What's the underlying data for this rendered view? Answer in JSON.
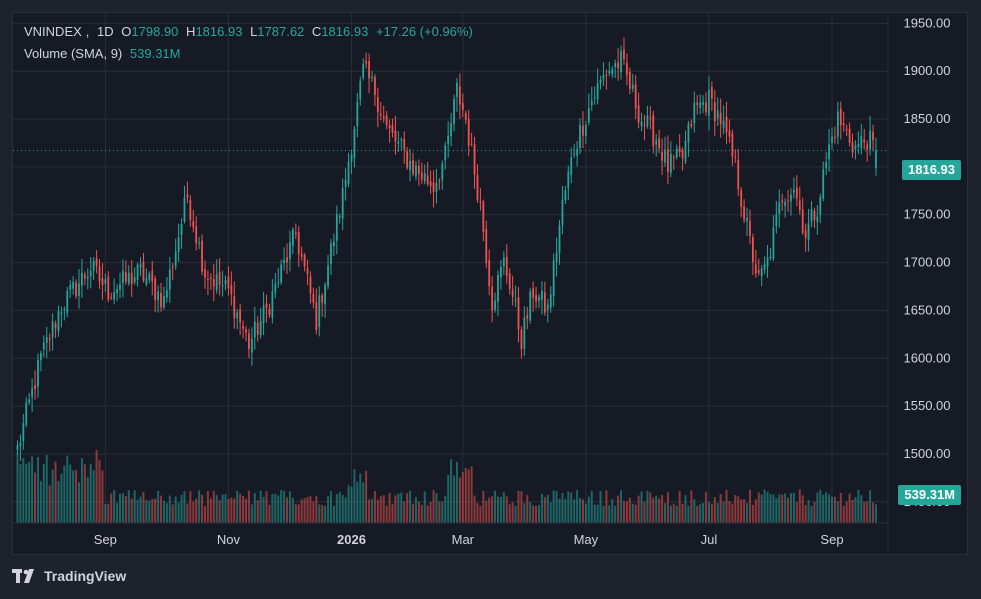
{
  "legend": {
    "symbol": "VNINDEX",
    "interval": "1D",
    "open_label": "O",
    "open": "1798.90",
    "high_label": "H",
    "high": "1816.93",
    "low_label": "L",
    "low": "1787.62",
    "close_label": "C",
    "close": "1816.93",
    "change": "+17.26 (+0.96%)",
    "volume_label": "Volume (SMA, 9)",
    "volume_value": "539.31M"
  },
  "price_tag": "1816.93",
  "volume_tag": "539.31M",
  "brand": "TradingView",
  "colors": {
    "up": "#26a69a",
    "down": "#ef5350",
    "background": "#161a25",
    "grid": "#2a2e39",
    "text": "#d1d4dc"
  },
  "chart_data": {
    "type": "candlestick",
    "y_ticks": [
      "1950.00",
      "1900.00",
      "1850.00",
      "1800.00",
      "1750.00",
      "1700.00",
      "1650.00",
      "1600.00",
      "1550.00",
      "1500.00",
      "1450.00"
    ],
    "ylim": [
      1440,
      1965
    ],
    "x_ticks": [
      {
        "label": "Sep",
        "bar": 30,
        "bold": false
      },
      {
        "label": "Nov",
        "bar": 72,
        "bold": false
      },
      {
        "label": "2026",
        "bar": 114,
        "bold": true
      },
      {
        "label": "Mar",
        "bar": 152,
        "bold": false
      },
      {
        "label": "May",
        "bar": 194,
        "bold": false
      },
      {
        "label": "Jul",
        "bar": 236,
        "bold": false
      },
      {
        "label": "Sep",
        "bar": 278,
        "bold": false
      }
    ],
    "last_close": 1816.93,
    "keypoints": [
      [
        0,
        1505
      ],
      [
        8,
        1600
      ],
      [
        15,
        1655
      ],
      [
        25,
        1695
      ],
      [
        31,
        1670
      ],
      [
        42,
        1690
      ],
      [
        50,
        1660
      ],
      [
        58,
        1770
      ],
      [
        64,
        1690
      ],
      [
        72,
        1670
      ],
      [
        79,
        1615
      ],
      [
        85,
        1650
      ],
      [
        95,
        1730
      ],
      [
        102,
        1640
      ],
      [
        111,
        1770
      ],
      [
        118,
        1900
      ],
      [
        122,
        1880
      ],
      [
        126,
        1840
      ],
      [
        135,
        1800
      ],
      [
        142,
        1780
      ],
      [
        146,
        1810
      ],
      [
        150,
        1880
      ],
      [
        153,
        1850
      ],
      [
        158,
        1760
      ],
      [
        162,
        1660
      ],
      [
        166,
        1700
      ],
      [
        168,
        1680
      ],
      [
        172,
        1620
      ],
      [
        176,
        1670
      ],
      [
        181,
        1650
      ],
      [
        186,
        1760
      ],
      [
        190,
        1820
      ],
      [
        196,
        1870
      ],
      [
        201,
        1900
      ],
      [
        206,
        1910
      ],
      [
        213,
        1850
      ],
      [
        218,
        1830
      ],
      [
        222,
        1800
      ],
      [
        227,
        1810
      ],
      [
        231,
        1860
      ],
      [
        236,
        1870
      ],
      [
        240,
        1850
      ],
      [
        245,
        1800
      ],
      [
        250,
        1720
      ],
      [
        253,
        1680
      ],
      [
        256,
        1700
      ],
      [
        261,
        1770
      ],
      [
        265,
        1780
      ],
      [
        269,
        1730
      ],
      [
        273,
        1760
      ],
      [
        277,
        1820
      ],
      [
        280,
        1850
      ],
      [
        286,
        1820
      ],
      [
        290,
        1830
      ],
      [
        293,
        1815
      ]
    ],
    "volume_axis_max": 3000,
    "volume_sma_value": "539.31M"
  }
}
